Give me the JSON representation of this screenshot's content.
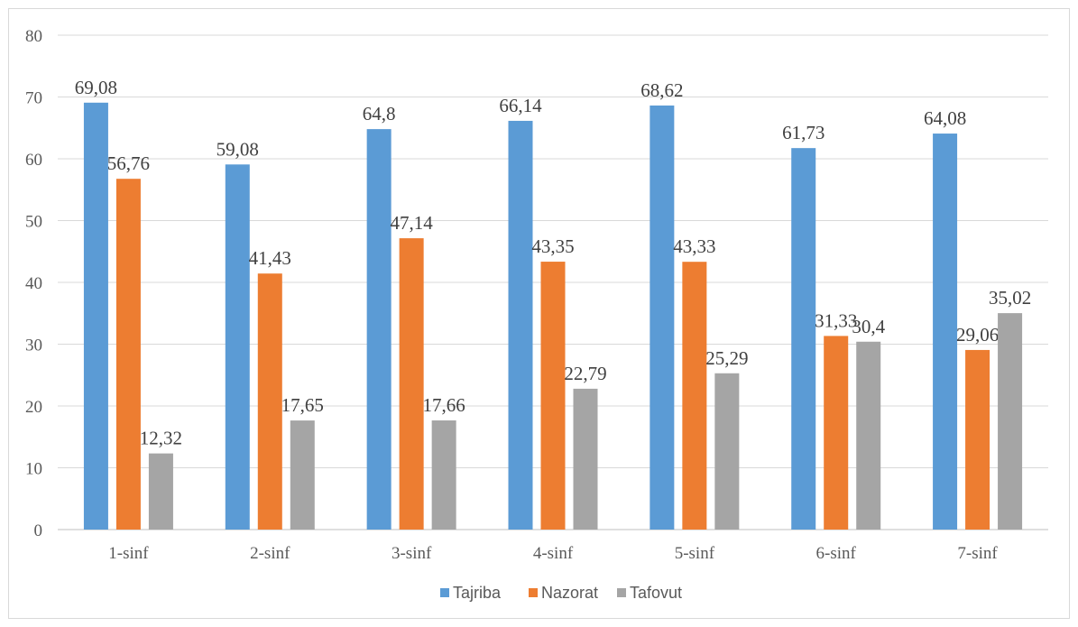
{
  "chart_data": {
    "type": "bar",
    "categories": [
      "1-sinf",
      "2-sinf",
      "3-sinf",
      "4-sinf",
      "5-sinf",
      "6-sinf",
      "7-sinf"
    ],
    "series": [
      {
        "name": "Tajriba",
        "color": "#5b9bd5",
        "values": [
          69.08,
          59.08,
          64.8,
          66.14,
          68.62,
          61.73,
          64.08
        ],
        "labels": [
          "69,08",
          "59,08",
          "64,8",
          "66,14",
          "68,62",
          "61,73",
          "64,08"
        ]
      },
      {
        "name": "Nazorat",
        "color": "#ed7d31",
        "values": [
          56.76,
          41.43,
          47.14,
          43.35,
          43.33,
          31.33,
          29.06
        ],
        "labels": [
          "56,76",
          "41,43",
          "47,14",
          "43,35",
          "43,33",
          "31,33",
          "29,06"
        ]
      },
      {
        "name": "Tafovut",
        "color": "#a5a5a5",
        "values": [
          12.32,
          17.65,
          17.66,
          22.79,
          25.29,
          30.4,
          35.02
        ],
        "labels": [
          "12,32",
          "17,65",
          "17,66",
          "22,79",
          "25,29",
          "30,4",
          "35,02"
        ]
      }
    ],
    "ylim": [
      0,
      80
    ],
    "yticks": [
      0,
      10,
      20,
      30,
      40,
      50,
      60,
      70,
      80
    ],
    "grid": true,
    "legend": "bottom-center",
    "title": "",
    "xlabel": "",
    "ylabel": ""
  }
}
